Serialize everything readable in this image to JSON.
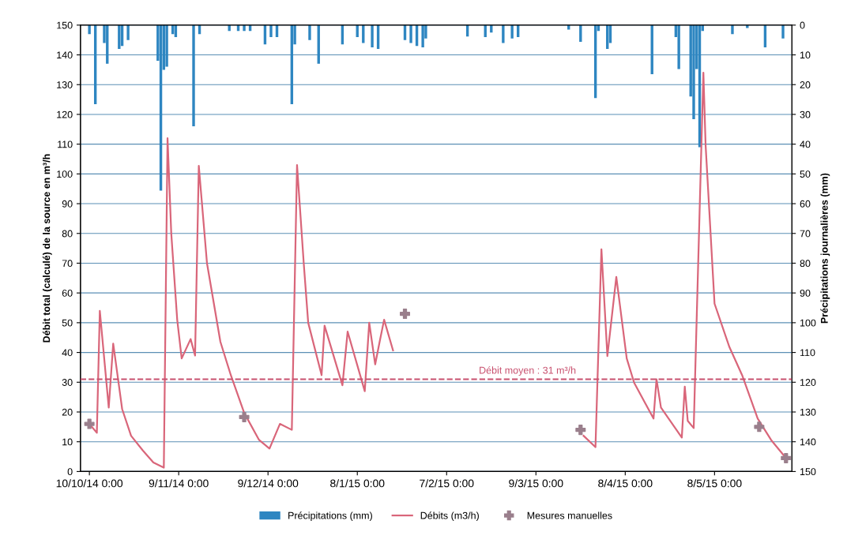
{
  "chart_data": {
    "type": "line",
    "ylabel": "Débit total (calculé) de la source en m³/h",
    "y2label": "Précipitations journalières (mm)",
    "xlim": [
      "2014-10-07",
      "2015-06-03"
    ],
    "xticks": [
      {
        "value": "2014-10-10",
        "label": "10/10/14 0:00"
      },
      {
        "value": "2014-11-09",
        "label": "9/11/14 0:00"
      },
      {
        "value": "2014-12-09",
        "label": "9/12/14 0:00"
      },
      {
        "value": "2015-01-08",
        "label": "8/1/15 0:00"
      },
      {
        "value": "2015-02-07",
        "label": "7/2/15 0:00"
      },
      {
        "value": "2015-03-09",
        "label": "9/3/15 0:00"
      },
      {
        "value": "2015-04-08",
        "label": "8/4/15 0:00"
      },
      {
        "value": "2015-05-08",
        "label": "8/5/15 0:00"
      }
    ],
    "ylim": [
      0,
      150
    ],
    "yticks": [
      0,
      10,
      20,
      30,
      40,
      50,
      60,
      70,
      80,
      90,
      100,
      110,
      120,
      130,
      140,
      150
    ],
    "y2lim": [
      150,
      0
    ],
    "y2ticks": [
      0,
      10,
      20,
      30,
      40,
      50,
      60,
      70,
      80,
      90,
      100,
      110,
      120,
      130,
      140,
      150
    ],
    "grid": true,
    "legend": "bottom",
    "ref_lines": [
      {
        "axis": "y",
        "value": 31,
        "label": "Débit moyen : 31 m³/h",
        "color": "#c8506e",
        "line_style": "dashed"
      }
    ],
    "series": [
      {
        "name": "Précipitations (mm)",
        "type": "bar",
        "axis": "y2",
        "color": "#2e86c1",
        "x": [
          "2014-10-10",
          "2014-10-12",
          "2014-10-15",
          "2014-10-16",
          "2014-10-20",
          "2014-10-21",
          "2014-10-23",
          "2014-11-02",
          "2014-11-03",
          "2014-11-04",
          "2014-11-05",
          "2014-11-07",
          "2014-11-08",
          "2014-11-14",
          "2014-11-16",
          "2014-11-26",
          "2014-11-29",
          "2014-12-01",
          "2014-12-03",
          "2014-12-08",
          "2014-12-10",
          "2014-12-12",
          "2014-12-17",
          "2014-12-18",
          "2014-12-23",
          "2014-12-26",
          "2015-01-03",
          "2015-01-08",
          "2015-01-10",
          "2015-01-13",
          "2015-01-15",
          "2015-01-24",
          "2015-01-26",
          "2015-01-28",
          "2015-01-30",
          "2015-01-31",
          "2015-02-14",
          "2015-02-20",
          "2015-02-22",
          "2015-02-26",
          "2015-03-01",
          "2015-03-03",
          "2015-03-20",
          "2015-03-24",
          "2015-03-29",
          "2015-03-30",
          "2015-04-02",
          "2015-04-03",
          "2015-04-17",
          "2015-04-25",
          "2015-04-26",
          "2015-04-30",
          "2015-05-01",
          "2015-05-02",
          "2015-05-03",
          "2015-05-04",
          "2015-05-14",
          "2015-05-19",
          "2015-05-25",
          "2015-05-31"
        ],
        "values": [
          3,
          26.6,
          6,
          13,
          8,
          7,
          5,
          12,
          55.6,
          15,
          14,
          3,
          4,
          34,
          3,
          2,
          2,
          2,
          2,
          6.5,
          4,
          4,
          26.6,
          6.5,
          5,
          13,
          6.5,
          4,
          6,
          7.5,
          8,
          5,
          6,
          7,
          7.5,
          4.5,
          3.8,
          4,
          2.5,
          6,
          4.5,
          4,
          1.5,
          5.6,
          24.5,
          2,
          8,
          6,
          16.5,
          4,
          14.8,
          24,
          31.6,
          14.8,
          41,
          2,
          3,
          1,
          7.5,
          4.5
        ]
      },
      {
        "name": "Débits (m3/h)",
        "color": "#d9667a",
        "marker": "none",
        "line_style": "solid",
        "x": [
          "2014-10-10",
          "2014-10-12T12:00",
          "2014-10-13T12:00",
          "2014-10-16T12:00",
          "2014-10-18",
          "2014-10-21",
          "2014-10-24",
          "2014-10-28",
          "2014-10-31T12:00",
          "2014-11-04",
          "2014-11-05T06:00",
          "2014-11-06T12:00",
          "2014-11-08T12:00",
          "2014-11-10",
          "2014-11-13",
          "2014-11-14T12:00",
          "2014-11-15T18:00",
          "2014-11-18T12:00",
          "2014-11-23",
          "2014-11-26T12:00",
          "2014-12-01",
          "2014-12-06",
          "2014-12-09T12:00",
          "2014-12-13",
          "2014-12-17",
          "2014-12-18T18:00",
          "2014-12-21",
          "2014-12-22T12:00",
          "2014-12-27",
          "2014-12-28",
          "2015-01-03",
          "2015-01-04T18:00",
          "2015-01-10T12:00",
          "2015-01-12",
          "2015-01-14",
          "2015-01-15T12:00",
          "2015-01-17",
          "2015-01-20",
          "2015-02-20",
          "2015-03-25",
          "2015-03-29",
          "2015-03-31",
          "2015-04-02",
          "2015-04-05",
          "2015-04-08T12:00",
          "2015-04-11",
          "2015-04-17T12:00",
          "2015-04-18T12:00",
          "2015-04-20",
          "2015-04-27",
          "2015-04-28",
          "2015-04-29",
          "2015-05-01",
          "2015-05-04T06:00",
          "2015-05-05",
          "2015-05-08",
          "2015-05-13",
          "2015-05-17T06:00",
          "2015-05-22T12:00",
          "2015-05-27",
          "2015-06-01"
        ],
        "values": [
          16,
          13,
          54,
          21.5,
          43,
          21,
          12,
          7,
          3,
          1.3,
          112,
          80,
          51,
          38,
          44.5,
          39,
          102.7,
          70,
          43.6,
          32.4,
          19.7,
          10.6,
          7.7,
          16,
          14,
          103,
          70,
          50,
          32.4,
          49,
          29,
          47,
          27,
          50,
          36,
          43.6,
          51,
          40.7,
          null,
          12,
          8.2,
          74.7,
          38.8,
          65.4,
          38,
          29.8,
          17.8,
          31,
          21.5,
          11.4,
          28.5,
          17,
          14.6,
          134,
          109.6,
          56.4,
          41.8,
          32.4,
          17.8,
          10.6,
          4.5
        ]
      },
      {
        "name": "Mesures manuelles",
        "type": "scatter",
        "color": "#9a7f8c",
        "marker": "cross",
        "x": [
          "2014-10-10",
          "2014-12-01",
          "2015-01-24",
          "2015-03-24",
          "2015-05-23",
          "2015-06-01"
        ],
        "values": [
          16,
          18.3,
          53,
          14,
          15,
          4.5
        ]
      }
    ]
  }
}
